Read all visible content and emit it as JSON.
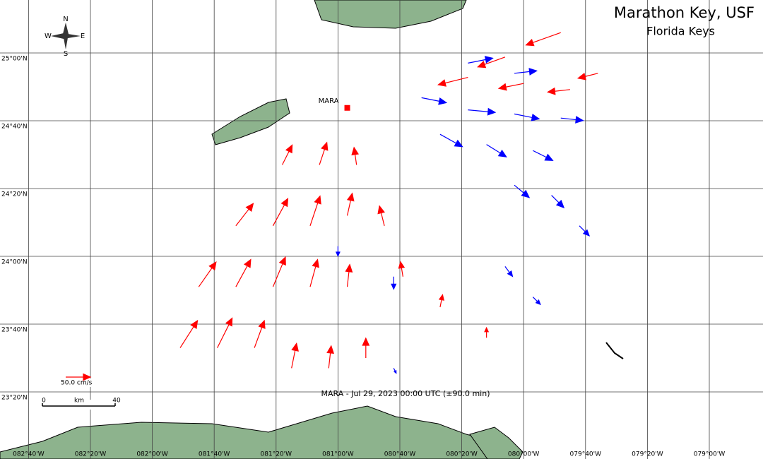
{
  "title": "Marathon Key, USF",
  "subtitle": "Florida Keys",
  "station": {
    "name": "MARA",
    "lon": -80.95,
    "lat": 24.73,
    "color": "#ff0000"
  },
  "caption": "MARA - Jul 29, 2023 00:00 UTC (±90.0 min)",
  "compass": {
    "n": "N",
    "s": "S",
    "e": "E",
    "w": "W"
  },
  "scale_arrow": {
    "value": 50,
    "label": "50.0 cm/s",
    "color": "#ff0000"
  },
  "scale_bar": {
    "start": "0",
    "unit": "km",
    "end": 40
  },
  "lat_ticks": [
    {
      "value": 25,
      "label": "25°00'N"
    },
    {
      "value": 24.6667,
      "label": "24°40'N"
    },
    {
      "value": 24.3333,
      "label": "24°20'N"
    },
    {
      "value": 24,
      "label": "24°00'N"
    },
    {
      "value": 23.6667,
      "label": "23°40'N"
    },
    {
      "value": 23.3333,
      "label": "23°20'N"
    }
  ],
  "lon_ticks": [
    {
      "value": -82.6667,
      "label": "082°40'W"
    },
    {
      "value": -82.3333,
      "label": "082°20'W"
    },
    {
      "value": -82,
      "label": "082°00'W"
    },
    {
      "value": -81.6667,
      "label": "081°40'W"
    },
    {
      "value": -81.3333,
      "label": "081°20'W"
    },
    {
      "value": -81,
      "label": "081°00'W"
    },
    {
      "value": -80.6667,
      "label": "080°40'W"
    },
    {
      "value": -80.3333,
      "label": "080°20'W"
    },
    {
      "value": -80,
      "label": "080°00'W"
    },
    {
      "value": -79.6667,
      "label": "079°40'W"
    },
    {
      "value": -79.3333,
      "label": "079°20'W"
    },
    {
      "value": -79,
      "label": "079°00'W"
    }
  ],
  "vector_groups": [
    {
      "color": "#ff0000",
      "vectors": [
        {
          "lon": -81.85,
          "lat": 23.55,
          "u": 35,
          "v": 55
        },
        {
          "lon": -81.65,
          "lat": 23.55,
          "u": 30,
          "v": 60
        },
        {
          "lon": -81.45,
          "lat": 23.55,
          "u": 20,
          "v": 55
        },
        {
          "lon": -81.25,
          "lat": 23.45,
          "u": 10,
          "v": 50
        },
        {
          "lon": -81.05,
          "lat": 23.45,
          "u": 5,
          "v": 45
        },
        {
          "lon": -80.85,
          "lat": 23.5,
          "u": 0,
          "v": 40
        },
        {
          "lon": -81.75,
          "lat": 23.85,
          "u": 35,
          "v": 50
        },
        {
          "lon": -81.55,
          "lat": 23.85,
          "u": 30,
          "v": 55
        },
        {
          "lon": -81.35,
          "lat": 23.85,
          "u": 25,
          "v": 60
        },
        {
          "lon": -81.15,
          "lat": 23.85,
          "u": 15,
          "v": 55
        },
        {
          "lon": -80.95,
          "lat": 23.85,
          "u": 5,
          "v": 45
        },
        {
          "lon": -81.55,
          "lat": 24.15,
          "u": 35,
          "v": 45
        },
        {
          "lon": -81.35,
          "lat": 24.15,
          "u": 30,
          "v": 55
        },
        {
          "lon": -81.15,
          "lat": 24.15,
          "u": 20,
          "v": 60
        },
        {
          "lon": -80.95,
          "lat": 24.2,
          "u": 10,
          "v": 45
        },
        {
          "lon": -80.75,
          "lat": 24.15,
          "u": -10,
          "v": 40
        },
        {
          "lon": -81.3,
          "lat": 24.45,
          "u": 20,
          "v": 40
        },
        {
          "lon": -81.1,
          "lat": 24.45,
          "u": 15,
          "v": 45
        },
        {
          "lon": -80.9,
          "lat": 24.45,
          "u": -5,
          "v": 35
        },
        {
          "lon": -80.65,
          "lat": 23.9,
          "u": -5,
          "v": 30
        },
        {
          "lon": -80.45,
          "lat": 23.75,
          "u": 5,
          "v": 25
        },
        {
          "lon": -80.2,
          "lat": 23.6,
          "u": 0,
          "v": 20
        },
        {
          "lon": -80.3,
          "lat": 24.88,
          "u": -60,
          "v": -15
        },
        {
          "lon": -80,
          "lat": 24.85,
          "u": -50,
          "v": -10
        },
        {
          "lon": -79.75,
          "lat": 24.82,
          "u": -45,
          "v": -5
        },
        {
          "lon": -79.6,
          "lat": 24.9,
          "u": -40,
          "v": -10
        },
        {
          "lon": -80.1,
          "lat": 24.98,
          "u": -55,
          "v": -20
        },
        {
          "lon": -79.8,
          "lat": 25.1,
          "u": -70,
          "v": -25
        }
      ]
    },
    {
      "color": "#0000ff",
      "vectors": [
        {
          "lon": -80.55,
          "lat": 24.78,
          "u": 50,
          "v": -10
        },
        {
          "lon": -80.3,
          "lat": 24.72,
          "u": 55,
          "v": -5
        },
        {
          "lon": -80.05,
          "lat": 24.7,
          "u": 50,
          "v": -10
        },
        {
          "lon": -79.8,
          "lat": 24.68,
          "u": 45,
          "v": -5
        },
        {
          "lon": -80.45,
          "lat": 24.6,
          "u": 45,
          "v": -25
        },
        {
          "lon": -80.2,
          "lat": 24.55,
          "u": 40,
          "v": -25
        },
        {
          "lon": -79.95,
          "lat": 24.52,
          "u": 40,
          "v": -20
        },
        {
          "lon": -80.05,
          "lat": 24.35,
          "u": 30,
          "v": -25
        },
        {
          "lon": -79.85,
          "lat": 24.3,
          "u": 25,
          "v": -25
        },
        {
          "lon": -79.7,
          "lat": 24.15,
          "u": 20,
          "v": -20
        },
        {
          "lon": -80.3,
          "lat": 24.95,
          "u": 50,
          "v": 10
        },
        {
          "lon": -80.05,
          "lat": 24.9,
          "u": 45,
          "v": 5
        },
        {
          "lon": -80.1,
          "lat": 23.95,
          "u": 15,
          "v": -20
        },
        {
          "lon": -79.95,
          "lat": 23.8,
          "u": 15,
          "v": -15
        },
        {
          "lon": -80.7,
          "lat": 23.9,
          "u": 0,
          "v": -25
        },
        {
          "lon": -81,
          "lat": 24.05,
          "u": 0,
          "v": -20
        },
        {
          "lon": -80.7,
          "lat": 23.45,
          "u": 5,
          "v": -10
        }
      ]
    }
  ]
}
